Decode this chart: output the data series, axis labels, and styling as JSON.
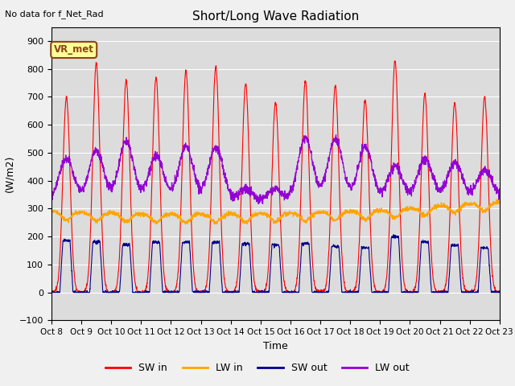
{
  "title": "Short/Long Wave Radiation",
  "xlabel": "Time",
  "ylabel": "(W/m2)",
  "ylim": [
    -100,
    950
  ],
  "yticks": [
    -100,
    0,
    100,
    200,
    300,
    400,
    500,
    600,
    700,
    800,
    900
  ],
  "no_data_text": "No data for f_Net_Rad",
  "station_label": "VR_met",
  "xtick_labels": [
    "Oct 8",
    "Oct 9",
    "Oct 10",
    "Oct 11",
    "Oct 12",
    "Oct 13",
    "Oct 14",
    "Oct 15",
    "Oct 16",
    "Oct 17",
    "Oct 18",
    "Oct 19",
    "Oct 20",
    "Oct 21",
    "Oct 22",
    "Oct 23"
  ],
  "colors": {
    "SW_in": "#ff0000",
    "LW_in": "#ffa500",
    "SW_out": "#00008b",
    "LW_out": "#9400d3"
  },
  "legend_labels": [
    "SW in",
    "LW in",
    "SW out",
    "LW out"
  ],
  "background_color": "#dcdcdc",
  "fig_background": "#f0f0f0",
  "n_days": 15,
  "pts_per_day": 144,
  "SW_in_peaks": [
    700,
    820,
    760,
    770,
    795,
    810,
    750,
    680,
    760,
    740,
    690,
    830,
    710,
    680,
    700
  ],
  "LW_in_base": 290,
  "LW_out_night": 320,
  "LW_out_peaks": [
    480,
    510,
    540,
    490,
    520,
    520,
    370,
    370,
    555,
    550,
    520,
    450,
    470,
    450,
    420
  ],
  "SW_out_peaks": [
    185,
    180,
    170,
    180,
    180,
    180,
    175,
    170,
    175,
    165,
    160,
    200,
    180,
    170,
    160
  ]
}
